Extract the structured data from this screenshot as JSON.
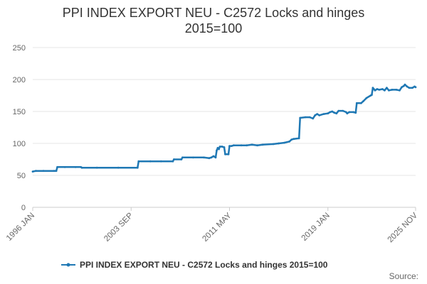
{
  "chart_data": {
    "type": "line",
    "title_line1": "PPI INDEX EXPORT NEU - C2572 Locks and hinges",
    "title_line2": "2015=100",
    "x_ticks": [
      {
        "label": "1996 JAN",
        "x": 0
      },
      {
        "label": "2003 SEP",
        "x": 92
      },
      {
        "label": "2011 MAY",
        "x": 184
      },
      {
        "label": "2019 JAN",
        "x": 276
      },
      {
        "label": "2025 NOV",
        "x": 358
      }
    ],
    "ylim": [
      0,
      250
    ],
    "y_ticks": [
      0,
      50,
      100,
      150,
      200,
      250
    ],
    "grid": true,
    "legend_position": "bottom",
    "series": [
      {
        "name": "PPI INDEX EXPORT NEU - C2572 Locks and hinges 2015=100",
        "color": "#1f78b4",
        "points": [
          [
            0,
            56
          ],
          [
            3,
            57
          ],
          [
            10,
            57
          ],
          [
            20,
            57
          ],
          [
            22,
            57
          ],
          [
            23,
            63
          ],
          [
            30,
            63
          ],
          [
            40,
            63
          ],
          [
            45,
            63
          ],
          [
            46,
            62
          ],
          [
            60,
            62
          ],
          [
            80,
            62
          ],
          [
            98,
            62
          ],
          [
            99,
            72
          ],
          [
            110,
            72
          ],
          [
            120,
            72
          ],
          [
            131,
            72
          ],
          [
            132,
            75
          ],
          [
            139,
            75
          ],
          [
            140,
            78
          ],
          [
            150,
            78
          ],
          [
            160,
            78
          ],
          [
            165,
            77
          ],
          [
            167,
            78
          ],
          [
            169,
            80
          ],
          [
            171,
            78
          ],
          [
            172,
            89
          ],
          [
            173,
            93
          ],
          [
            174,
            91
          ],
          [
            175,
            95
          ],
          [
            177,
            95
          ],
          [
            179,
            94
          ],
          [
            180,
            83
          ],
          [
            183,
            83
          ],
          [
            184,
            96
          ],
          [
            186,
            96
          ],
          [
            188,
            97
          ],
          [
            195,
            97
          ],
          [
            200,
            97
          ],
          [
            205,
            98
          ],
          [
            210,
            97
          ],
          [
            215,
            98
          ],
          [
            225,
            99
          ],
          [
            230,
            100
          ],
          [
            235,
            101
          ],
          [
            240,
            103
          ],
          [
            242,
            106
          ],
          [
            244,
            107
          ],
          [
            249,
            108
          ],
          [
            250,
            140
          ],
          [
            255,
            141
          ],
          [
            259,
            141
          ],
          [
            262,
            139
          ],
          [
            264,
            144
          ],
          [
            266,
            146
          ],
          [
            268,
            144
          ],
          [
            272,
            146
          ],
          [
            276,
            147
          ],
          [
            278,
            149
          ],
          [
            280,
            150
          ],
          [
            282,
            148
          ],
          [
            284,
            147
          ],
          [
            286,
            151
          ],
          [
            290,
            151
          ],
          [
            293,
            149
          ],
          [
            294,
            147
          ],
          [
            296,
            149
          ],
          [
            300,
            149
          ],
          [
            302,
            148
          ],
          [
            303,
            163
          ],
          [
            307,
            163
          ],
          [
            309,
            166
          ],
          [
            312,
            171
          ],
          [
            316,
            175
          ],
          [
            317,
            176
          ],
          [
            318,
            187
          ],
          [
            319,
            185
          ],
          [
            320,
            183
          ],
          [
            322,
            185
          ],
          [
            324,
            184
          ],
          [
            327,
            185
          ],
          [
            329,
            183
          ],
          [
            331,
            187
          ],
          [
            333,
            183
          ],
          [
            336,
            184
          ],
          [
            340,
            184
          ],
          [
            343,
            183
          ],
          [
            345,
            188
          ],
          [
            347,
            190
          ],
          [
            348,
            192
          ],
          [
            350,
            189
          ],
          [
            352,
            187
          ],
          [
            355,
            187
          ],
          [
            357,
            189
          ],
          [
            358,
            188
          ]
        ]
      }
    ]
  },
  "legend_label": "PPI INDEX EXPORT NEU - C2572 Locks and hinges 2015=100",
  "source_label": "Source:"
}
